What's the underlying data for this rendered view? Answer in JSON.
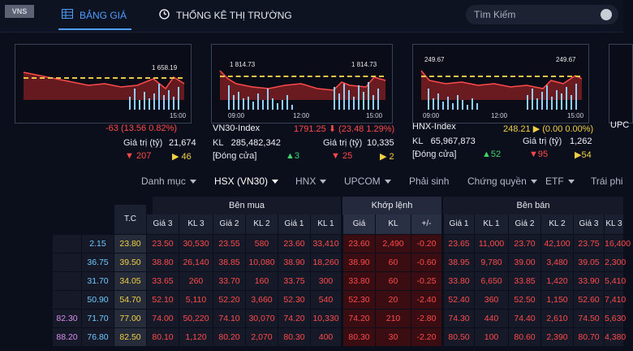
{
  "nav": {
    "logo": "VNS",
    "tab_board": "BẢNG GIÁ",
    "tab_stats": "THỐNG KÊ THỊ TRƯỜNG",
    "search_placeholder": "Tìm Kiếm"
  },
  "cards": [
    {
      "peak": "1 658.19",
      "time": "15:00",
      "change": "-63 (13.56 0.82%)",
      "value_label": "Giá trị (tỷ)",
      "value": "21,674",
      "down": "207",
      "up": "46"
    },
    {
      "peak_left": "1 814.73",
      "peak_right": "1 814.73",
      "times": [
        "09:00",
        "12:00",
        "15:00"
      ],
      "name": "VN30-Index",
      "price": "1791.25",
      "change": "(23.48 1.29%)",
      "kl_label": "KL",
      "kl": "285,482,342",
      "value_label": "Giá trị (tỷ)",
      "value": "10,335",
      "status": "[Đóng cửa]",
      "up": "3",
      "down": "25",
      "ref": "2"
    },
    {
      "peak_left": "249.67",
      "peak_right": "249.67",
      "times": [
        "09:00",
        "12:00",
        "15:00"
      ],
      "name": "HNX-Index",
      "price": "248.21",
      "change": "(0.00 0.00%)",
      "kl_label": "KL",
      "kl": "65,967,873",
      "value_label": "Giá trị (tỷ)",
      "value": "1,262",
      "status": "[Đóng cửa]",
      "up": "52",
      "down": "95",
      "ref": "54"
    },
    {
      "name": "UPC"
    }
  ],
  "filters": [
    "Danh mục",
    "HSX (VN30)",
    "HNX",
    "UPCOM",
    "Phải sinh",
    "Chứng quyền",
    "ETF",
    "Trái phi"
  ],
  "table": {
    "groups": {
      "buy": "Bên mua",
      "match": "Khớp lệnh",
      "sell": "Bên bán"
    },
    "col_tc": "T.C",
    "buy_cols": [
      "Giá 3",
      "KL 3",
      "Giá 2",
      "KL 2",
      "Giá 1",
      "KL 1"
    ],
    "match_cols": [
      "Giá",
      "KL",
      "+/-"
    ],
    "sell_cols": [
      "Giá 1",
      "KL 1",
      "Giá 2",
      "KL 2",
      "Giá 3",
      "KL 3"
    ],
    "rows": [
      {
        "c0": "",
        "c1": "2.15",
        "tc": "23.80",
        "b": [
          "23.50",
          "30,530",
          "23.55",
          "580",
          "23.60",
          "33,410"
        ],
        "m": [
          "23.60",
          "2,490",
          "-0.20"
        ],
        "s": [
          "23.65",
          "11,000",
          "23.70",
          "42,100",
          "23.75",
          "16,400"
        ]
      },
      {
        "c0": "",
        "c1": "36.75",
        "tc": "39.50",
        "b": [
          "38.80",
          "26,140",
          "38.85",
          "10,080",
          "38.90",
          "18,260"
        ],
        "m": [
          "38.90",
          "60",
          "-0.60"
        ],
        "s": [
          "38.95",
          "9,780",
          "39.00",
          "3,480",
          "39.05",
          "2,300"
        ]
      },
      {
        "c0": "",
        "c1": "31.70",
        "tc": "34.05",
        "b": [
          "33.65",
          "260",
          "33.70",
          "160",
          "33.75",
          "300"
        ],
        "m": [
          "33.80",
          "60",
          "-0.25"
        ],
        "s": [
          "33.80",
          "6,650",
          "33.85",
          "1,420",
          "33.90",
          "5,410"
        ]
      },
      {
        "c0": "",
        "c1": "50.90",
        "tc": "54.70",
        "b": [
          "52.10",
          "5,110",
          "52.20",
          "3,660",
          "52.30",
          "540"
        ],
        "m": [
          "52.30",
          "20",
          "-2.40"
        ],
        "s": [
          "52.40",
          "360",
          "52.50",
          "1,150",
          "52.60",
          "7,410"
        ]
      },
      {
        "c0": "82.30",
        "c1": "71.70",
        "tc": "77.00",
        "b": [
          "74.00",
          "50,220",
          "74.10",
          "30,070",
          "74.20",
          "10,330"
        ],
        "m": [
          "74.20",
          "210",
          "-2.80"
        ],
        "s": [
          "74.30",
          "440",
          "74.40",
          "2,610",
          "74.50",
          "5,630"
        ]
      },
      {
        "c0": "88.20",
        "c1": "76.80",
        "tc": "82.50",
        "b": [
          "80.10",
          "1,120",
          "80.20",
          "2,070",
          "80.30",
          "400"
        ],
        "m": [
          "80.30",
          "30",
          "-2.20"
        ],
        "s": [
          "80.50",
          "100",
          "80.60",
          "2,390",
          "80.70",
          "4,380"
        ]
      }
    ]
  },
  "colors": {
    "red": "#ff4a4a",
    "yellow": "#f2d046",
    "green": "#3fd36b",
    "accent": "#4f9dff"
  }
}
